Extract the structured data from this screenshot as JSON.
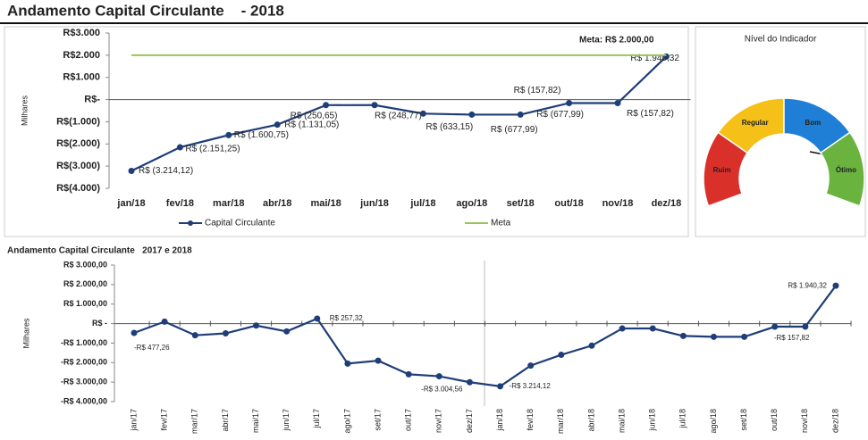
{
  "header": {
    "title": "Andamento Capital Circulante    - 2018"
  },
  "chart_data": [
    {
      "type": "line",
      "ylabel": "Milhares",
      "annotation": "Meta: R$ 2.000,00",
      "categories": [
        "jan/18",
        "fev/18",
        "mar/18",
        "abr/18",
        "mai/18",
        "jun/18",
        "jul/18",
        "ago/18",
        "set/18",
        "out/18",
        "nov/18",
        "dez/18"
      ],
      "series": [
        {
          "name": "Capital Circulante",
          "color": "#1f3e78",
          "marker": true,
          "values": [
            -3214.12,
            -2151.25,
            -1600.75,
            -1131.05,
            -250.65,
            -248.77,
            -633.15,
            -677.99,
            -677.99,
            -157.82,
            -157.82,
            1940.32
          ],
          "value_labels": [
            "R$ (3.214,12)",
            "R$ (2.151,25)",
            "R$ (1.600,75)",
            "R$ (1.131,05)",
            "R$ (250,65)",
            "R$ (248,77)",
            "R$ (633,15)",
            "R$ (677,99)",
            "R$ (677,99)",
            "R$ (157,82)",
            "R$ (157,82)",
            "R$ 1.940,32"
          ]
        },
        {
          "name": "Meta",
          "color": "#9bc35a",
          "marker": false,
          "values": [
            2000,
            2000,
            2000,
            2000,
            2000,
            2000,
            2000,
            2000,
            2000,
            2000,
            2000,
            2000
          ]
        }
      ],
      "ylim": [
        -4000,
        3000
      ],
      "yticks": [
        {
          "value": -4000,
          "label": "R$(4.000)"
        },
        {
          "value": -3000,
          "label": "R$(3.000)"
        },
        {
          "value": -2000,
          "label": "R$(2.000)"
        },
        {
          "value": -1000,
          "label": "R$(1.000)"
        },
        {
          "value": 0,
          "label": "R$-"
        },
        {
          "value": 1000,
          "label": "R$1.000"
        },
        {
          "value": 2000,
          "label": "R$2.000"
        },
        {
          "value": 3000,
          "label": "R$3.000"
        }
      ],
      "grid": false,
      "legend": "bottom"
    },
    {
      "type": "gauge",
      "title": "Nível do Indicador",
      "categories": [
        "Ruim",
        "Regular",
        "Bom",
        "Ótimo"
      ],
      "colors": [
        "#d9302a",
        "#f5c018",
        "#1f7fd6",
        "#6ab33e"
      ]
    },
    {
      "type": "line",
      "title": "Andamento Capital Circulante   2017 e 2018",
      "ylabel": "Milhares",
      "categories": [
        "jan/17",
        "fev/17",
        "mar/17",
        "abr/17",
        "mai/17",
        "jun/17",
        "jul/17",
        "ago/17",
        "set/17",
        "out/17",
        "nov/17",
        "dez/17",
        "jan/18",
        "fev/18",
        "mar/18",
        "abr/18",
        "mai/18",
        "jun/18",
        "jul/18",
        "ago/18",
        "set/18",
        "out/18",
        "nov/18",
        "dez/18"
      ],
      "series": [
        {
          "name": "Capital Circulante",
          "color": "#1f3e78",
          "marker": true,
          "values": [
            -477.26,
            100,
            -600,
            -500,
            -100,
            -400,
            257.32,
            -2050,
            -1900,
            -2600,
            -2700,
            -3004.56,
            -3214.12,
            -2151.25,
            -1600.75,
            -1131.05,
            -250.65,
            -248.77,
            -633.15,
            -677.99,
            -677.99,
            -157.82,
            -157.82,
            1940.32
          ],
          "value_labels": [
            "-R$ 477,26",
            null,
            null,
            null,
            null,
            null,
            "R$ 257,32",
            null,
            null,
            null,
            null,
            "-R$ 3.004,56",
            "-R$ 3.214,12",
            null,
            null,
            null,
            null,
            null,
            null,
            null,
            null,
            null,
            "-R$ 157,82",
            "R$ 1.940,32"
          ]
        }
      ],
      "ylim": [
        -4000,
        3000
      ],
      "yticks": [
        {
          "value": -4000,
          "label": "-R$ 4.000,00"
        },
        {
          "value": -3000,
          "label": "-R$ 3.000,00"
        },
        {
          "value": -2000,
          "label": "-R$ 2.000,00"
        },
        {
          "value": -1000,
          "label": "-R$ 1.000,00"
        },
        {
          "value": 0,
          "label": "R$ -"
        },
        {
          "value": 1000,
          "label": "R$ 1.000,00"
        },
        {
          "value": 2000,
          "label": "R$ 2.000,00"
        },
        {
          "value": 3000,
          "label": "R$ 3.000,00"
        }
      ],
      "grid": false
    }
  ]
}
